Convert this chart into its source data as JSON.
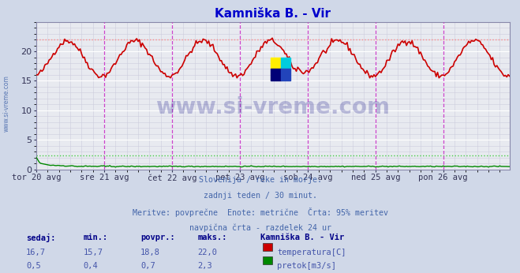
{
  "title": "Kamniška B. - Vir",
  "title_color": "#0000cc",
  "bg_color": "#d0d8e8",
  "plot_bg_color": "#e8eaf0",
  "grid_color": "#ffffff",
  "grid_minor_color": "#ccccdd",
  "x_labels": [
    "tor 20 avg",
    "sre 21 avg",
    "čet 22 avg",
    "pet 23 avg",
    "sob 24 avg",
    "ned 25 avg",
    "pon 26 avg"
  ],
  "x_ticks": [
    0,
    48,
    96,
    144,
    192,
    240,
    288
  ],
  "total_points": 336,
  "ylim": [
    0,
    25
  ],
  "yticks": [
    0,
    5,
    10,
    15,
    20
  ],
  "temp_color": "#cc0000",
  "flow_color": "#008800",
  "vline_color": "#cc44cc",
  "vline2_color": "#444466",
  "hline_max_temp_color": "#ff8888",
  "hline_max_flow_color": "#44cc44",
  "temp_max_line": 22.0,
  "flow_max_line": 2.3,
  "watermark_text": "www.si-vreme.com",
  "watermark_color": "#1a1a8c",
  "watermark_alpha": 0.25,
  "subtitle_lines": [
    "Slovenija / reke in morje.",
    "zadnji teden / 30 minut.",
    "Meritve: povprečne  Enote: metrične  Črta: 95% meritev",
    "navpična črta - razdelek 24 ur"
  ],
  "subtitle_color": "#4466aa",
  "table_headers": [
    "sedaj:",
    "min.:",
    "povpr.:",
    "maks.:"
  ],
  "table_header_color": "#000088",
  "table_data_color": "#4455aa",
  "temp_row": [
    "16,7",
    "15,7",
    "18,8",
    "22,0"
  ],
  "flow_row": [
    "0,5",
    "0,4",
    "0,7",
    "2,3"
  ],
  "legend_title": "Kamniška B. - Vir",
  "legend_items": [
    "temperatura[C]",
    "pretok[m3/s]"
  ],
  "legend_colors": [
    "#cc0000",
    "#008800"
  ],
  "side_label": "www.si-vreme.com",
  "side_label_color": "#4466aa",
  "dpi": 100,
  "figsize": [
    6.59,
    3.46
  ]
}
